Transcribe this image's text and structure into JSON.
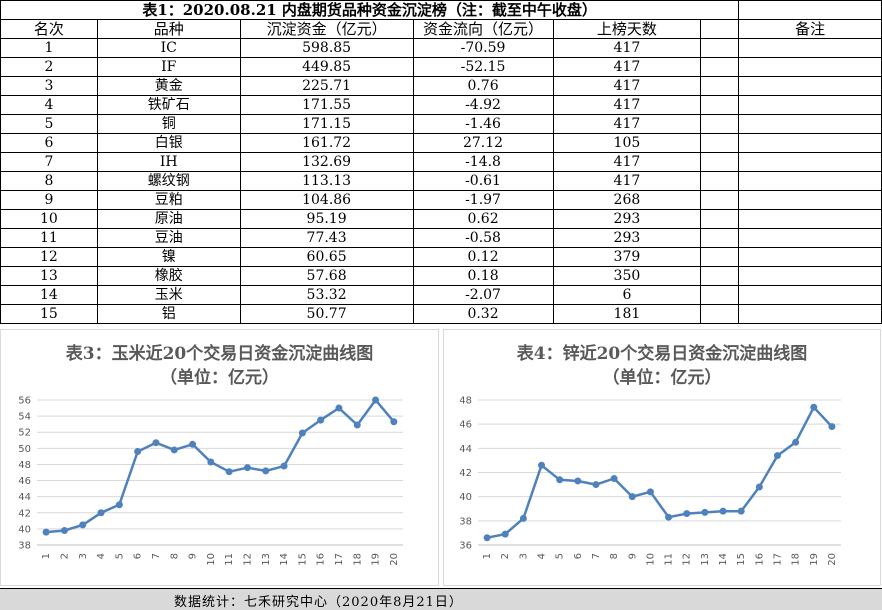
{
  "table": {
    "title": "表1：2020.08.21 内盘期货品种资金沉淀榜（注：截至中午收盘）",
    "headers": [
      "名次",
      "品种",
      "沉淀资金（亿元）",
      "资金流向（亿元）",
      "上榜天数",
      "",
      "备注"
    ],
    "rows": [
      [
        "1",
        "IC",
        "598.85",
        "-70.59",
        "417"
      ],
      [
        "2",
        "IF",
        "449.85",
        "-52.15",
        "417"
      ],
      [
        "3",
        "黄金",
        "225.71",
        "0.76",
        "417"
      ],
      [
        "4",
        "铁矿石",
        "171.55",
        "-4.92",
        "417"
      ],
      [
        "5",
        "铜",
        "171.15",
        "-1.46",
        "417"
      ],
      [
        "6",
        "白银",
        "161.72",
        "27.12",
        "105"
      ],
      [
        "7",
        "IH",
        "132.69",
        "-14.8",
        "417"
      ],
      [
        "8",
        "螺纹钢",
        "113.13",
        "-0.61",
        "417"
      ],
      [
        "9",
        "豆粕",
        "104.86",
        "-1.97",
        "268"
      ],
      [
        "10",
        "原油",
        "95.19",
        "0.62",
        "293"
      ],
      [
        "11",
        "豆油",
        "77.43",
        "-0.58",
        "293"
      ],
      [
        "12",
        "镍",
        "60.65",
        "0.12",
        "379"
      ],
      [
        "13",
        "橡胶",
        "57.68",
        "0.18",
        "350"
      ],
      [
        "14",
        "玉米",
        "53.32",
        "-2.07",
        "6"
      ],
      [
        "15",
        "铝",
        "50.77",
        "0.32",
        "181"
      ]
    ]
  },
  "chart_data": [
    {
      "type": "line",
      "title": "表3：玉米近20个交易日资金沉淀曲线图",
      "subtitle": "（单位：亿元）",
      "x": [
        1,
        2,
        3,
        4,
        5,
        6,
        7,
        8,
        9,
        10,
        11,
        12,
        13,
        14,
        15,
        16,
        17,
        18,
        19,
        20
      ],
      "values": [
        39.6,
        39.8,
        40.5,
        42.0,
        43.0,
        49.6,
        50.7,
        49.8,
        50.5,
        48.3,
        47.1,
        47.6,
        47.2,
        47.8,
        51.9,
        53.5,
        55.0,
        52.9,
        56.0,
        53.3
      ],
      "ylim": [
        38,
        56
      ],
      "yticks": [
        38,
        40,
        42,
        44,
        46,
        48,
        50,
        52,
        54,
        56
      ],
      "grid": true,
      "color": "#4f81bd"
    },
    {
      "type": "line",
      "title": "表4：锌近20个交易日资金沉淀曲线图",
      "subtitle": "（单位：亿元）",
      "x": [
        1,
        2,
        3,
        4,
        5,
        6,
        7,
        8,
        9,
        10,
        11,
        12,
        13,
        14,
        15,
        16,
        17,
        18,
        19,
        20
      ],
      "values": [
        36.6,
        36.9,
        38.2,
        42.6,
        41.4,
        41.3,
        41.0,
        41.5,
        40.0,
        40.4,
        38.3,
        38.6,
        38.7,
        38.8,
        38.8,
        40.8,
        43.4,
        44.5,
        47.4,
        45.8
      ],
      "ylim": [
        36,
        48
      ],
      "yticks": [
        36,
        38,
        40,
        42,
        44,
        46,
        48
      ],
      "grid": true,
      "color": "#4f81bd"
    }
  ],
  "footer": {
    "text": "数据统计：七禾研究中心（2020年8月21日）"
  }
}
